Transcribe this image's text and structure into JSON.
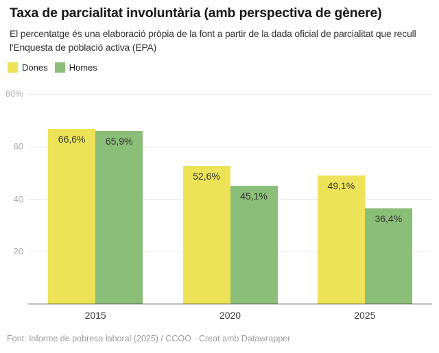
{
  "header": {
    "title": "Taxa de parcialitat involuntària (amb perspectiva de gènere)",
    "subtitle": "El percentatge és una elaboració pròpia de la font a partir de la dada oficial de parcialitat que recull l'Enquesta de població activa (EPA)"
  },
  "footer": {
    "text": "Font: Informe de pobresa laboral (2025) / CCOO · Creat amb Datawrapper"
  },
  "chart_data": {
    "type": "bar",
    "title": "Taxa de parcialitat involuntària (amb perspectiva de gènere)",
    "categories": [
      "2015",
      "2020",
      "2025"
    ],
    "series": [
      {
        "name": "Dones",
        "color": "#ece358",
        "values": [
          66.6,
          52.6,
          49.1
        ],
        "labels": [
          "66,6%",
          "52,6%",
          "49,1%"
        ]
      },
      {
        "name": "Homes",
        "color": "#8bbe78",
        "values": [
          65.9,
          45.1,
          36.4
        ],
        "labels": [
          "65,9%",
          "45,1%",
          "36,4%"
        ]
      }
    ],
    "xlabel": "",
    "ylabel": "",
    "ylim": [
      0,
      80
    ],
    "yticks": [
      {
        "value": 80,
        "label": "80%"
      },
      {
        "value": 60,
        "label": "60"
      },
      {
        "value": 40,
        "label": "40"
      },
      {
        "value": 20,
        "label": "20"
      }
    ],
    "grid": true,
    "value_labels": true,
    "legend_position": "top-left",
    "colors": {
      "gridline": "#e4e4e4",
      "baseline": "#2a2a2a",
      "tick_text": "#adadad",
      "value_text": "#333333"
    }
  }
}
